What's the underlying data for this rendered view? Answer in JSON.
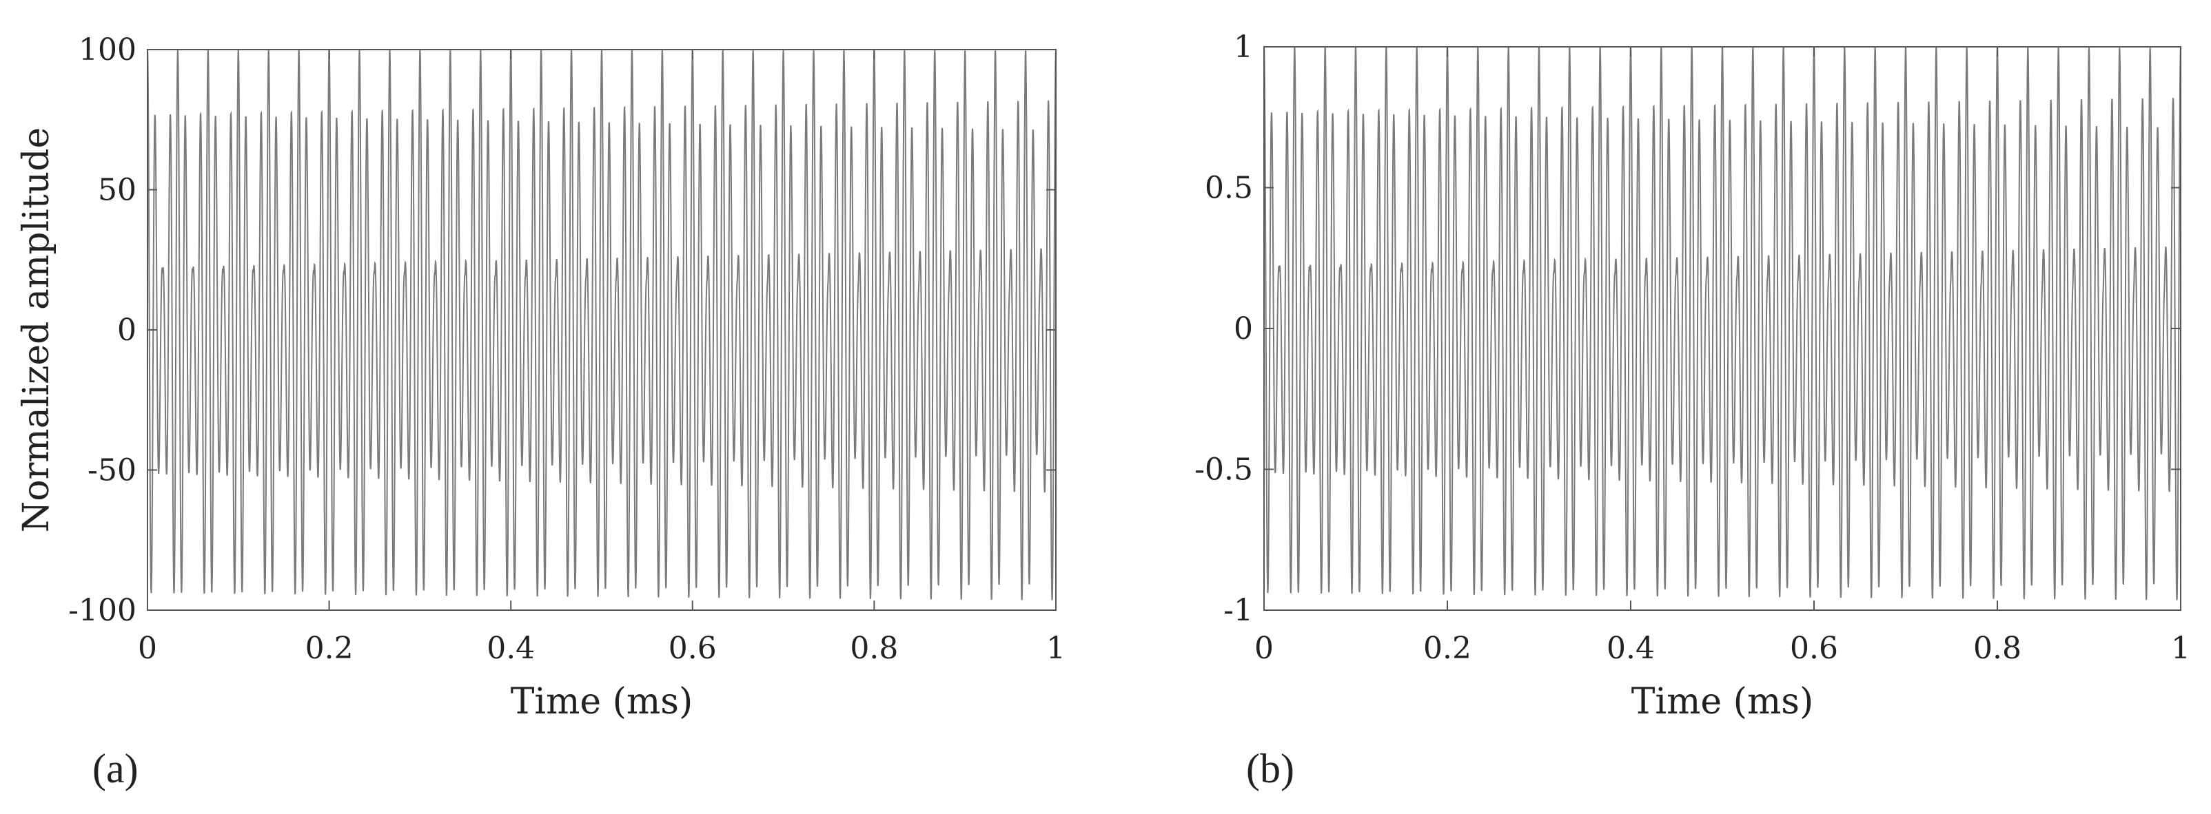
{
  "chart_data": [
    {
      "type": "line",
      "panel_label": "(a)",
      "title": "",
      "xlabel": "Time (ms)",
      "ylabel": "Normalized amplitude",
      "xlim": [
        0,
        1
      ],
      "ylim": [
        -100,
        100
      ],
      "xticks": [
        0,
        0.2,
        0.4,
        0.6,
        0.8,
        1
      ],
      "xtick_labels": [
        "0",
        "0.2",
        "0.4",
        "0.6",
        "0.8",
        "1"
      ],
      "yticks": [
        -100,
        -50,
        0,
        50,
        100
      ],
      "ytick_labels": [
        "-100",
        "-50",
        "0",
        "50",
        "100"
      ],
      "grid": false,
      "series": [
        {
          "peak_amplitude": 100,
          "approx_cycles": 120,
          "envelope_period_ms": 0.0333,
          "color": "#7a7a7a"
        }
      ]
    },
    {
      "type": "line",
      "panel_label": "(b)",
      "title": "",
      "xlabel": "Time (ms)",
      "ylabel": "",
      "xlim": [
        0,
        1
      ],
      "ylim": [
        -1,
        1
      ],
      "xticks": [
        0,
        0.2,
        0.4,
        0.6,
        0.8,
        1
      ],
      "xtick_labels": [
        "0",
        "0.2",
        "0.4",
        "0.6",
        "0.8",
        "1"
      ],
      "yticks": [
        -1,
        -0.5,
        0,
        0.5,
        1
      ],
      "ytick_labels": [
        "-1",
        "-0.5",
        "0",
        "0.5",
        "1"
      ],
      "grid": false,
      "series": [
        {
          "peak_amplitude": 1,
          "approx_cycles": 120,
          "envelope_period_ms": 0.0333,
          "color": "#7a7a7a"
        }
      ]
    }
  ]
}
